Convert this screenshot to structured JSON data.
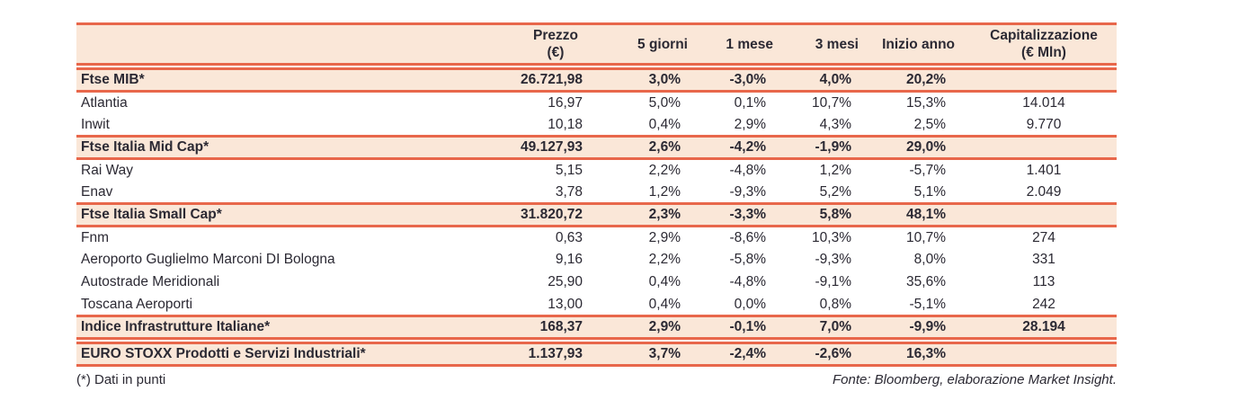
{
  "colors": {
    "accent": "#E8674B",
    "band_bg": "#FAE7D8",
    "text": "#2B2933",
    "page_bg": "#FFFFFF"
  },
  "table": {
    "columns": [
      {
        "line1": ""
      },
      {
        "line1": "Prezzo",
        "line2": "(€)"
      },
      {
        "line1": "5 giorni",
        "line2": ""
      },
      {
        "line1": "1 mese",
        "line2": ""
      },
      {
        "line1": "3 mesi",
        "line2": ""
      },
      {
        "line1": "Inizio anno",
        "line2": ""
      },
      {
        "line1": "Capitalizzazione",
        "line2": "(€ Mln)"
      }
    ],
    "rows": [
      {
        "type": "index",
        "gap_above": true,
        "name": "Ftse MIB*",
        "price": "26.721,98",
        "d5": "3,0%",
        "m1": "-3,0%",
        "m3": "4,0%",
        "ytd": "20,2%",
        "cap": ""
      },
      {
        "type": "stock",
        "name": "Atlantia",
        "price": "16,97",
        "d5": "5,0%",
        "m1": "0,1%",
        "m3": "10,7%",
        "ytd": "15,3%",
        "cap": "14.014"
      },
      {
        "type": "stock",
        "name": "Inwit",
        "price": "10,18",
        "d5": "0,4%",
        "m1": "2,9%",
        "m3": "4,3%",
        "ytd": "2,5%",
        "cap": "9.770"
      },
      {
        "type": "index",
        "name": "Ftse Italia Mid Cap*",
        "price": "49.127,93",
        "d5": "2,6%",
        "m1": "-4,2%",
        "m3": "-1,9%",
        "ytd": "29,0%",
        "cap": ""
      },
      {
        "type": "stock",
        "name": "Rai Way",
        "price": "5,15",
        "d5": "2,2%",
        "m1": "-4,8%",
        "m3": "1,2%",
        "ytd": "-5,7%",
        "cap": "1.401"
      },
      {
        "type": "stock",
        "name": "Enav",
        "price": "3,78",
        "d5": "1,2%",
        "m1": "-9,3%",
        "m3": "5,2%",
        "ytd": "5,1%",
        "cap": "2.049"
      },
      {
        "type": "index",
        "name": "Ftse Italia Small Cap*",
        "price": "31.820,72",
        "d5": "2,3%",
        "m1": "-3,3%",
        "m3": "5,8%",
        "ytd": "48,1%",
        "cap": ""
      },
      {
        "type": "stock",
        "name": "Fnm",
        "price": "0,63",
        "d5": "2,9%",
        "m1": "-8,6%",
        "m3": "10,3%",
        "ytd": "10,7%",
        "cap": "274"
      },
      {
        "type": "stock",
        "name": "Aeroporto Guglielmo Marconi DI Bologna",
        "price": "9,16",
        "d5": "2,2%",
        "m1": "-5,8%",
        "m3": "-9,3%",
        "ytd": "8,0%",
        "cap": "331"
      },
      {
        "type": "stock",
        "name": "Autostrade Meridionali",
        "price": "25,90",
        "d5": "0,4%",
        "m1": "-4,8%",
        "m3": "-9,1%",
        "ytd": "35,6%",
        "cap": "113"
      },
      {
        "type": "stock",
        "name": "Toscana Aeroporti",
        "price": "13,00",
        "d5": "0,4%",
        "m1": "0,0%",
        "m3": "0,8%",
        "ytd": "-5,1%",
        "cap": "242"
      },
      {
        "type": "index",
        "name": "Indice Infrastrutture Italiane*",
        "price": "168,37",
        "d5": "2,9%",
        "m1": "-0,1%",
        "m3": "7,0%",
        "ytd": "-9,9%",
        "cap": "28.194"
      },
      {
        "type": "index",
        "gap_above": true,
        "name": "EURO STOXX Prodotti e Servizi Industriali*",
        "price": "1.137,93",
        "d5": "3,7%",
        "m1": "-2,4%",
        "m3": "-2,6%",
        "ytd": "16,3%",
        "cap": ""
      }
    ]
  },
  "footer": {
    "note": "(*) Dati in punti",
    "source": "Fonte: Bloomberg, elaborazione Market Insight."
  }
}
